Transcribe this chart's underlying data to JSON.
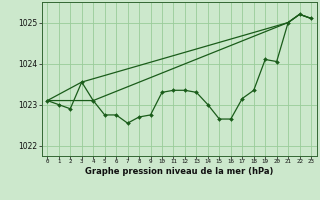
{
  "xlabel": "Graphe pression niveau de la mer (hPa)",
  "ylim": [
    1021.75,
    1025.5
  ],
  "xlim": [
    -0.5,
    23.5
  ],
  "yticks": [
    1022,
    1023,
    1024,
    1025
  ],
  "xticks": [
    0,
    1,
    2,
    3,
    4,
    5,
    6,
    7,
    8,
    9,
    10,
    11,
    12,
    13,
    14,
    15,
    16,
    17,
    18,
    19,
    20,
    21,
    22,
    23
  ],
  "bg_color": "#cce8cc",
  "grid_color": "#99cc99",
  "line_color": "#1a5c1a",
  "line1_x": [
    0,
    1,
    2,
    3,
    4,
    5,
    6,
    7,
    8,
    9,
    10,
    11,
    12,
    13,
    14,
    15,
    16,
    17,
    18,
    19,
    20,
    21,
    22,
    23
  ],
  "line1_y": [
    1023.1,
    1023.0,
    1022.9,
    1023.55,
    1023.1,
    1022.75,
    1022.75,
    1022.55,
    1022.7,
    1022.75,
    1023.3,
    1023.35,
    1023.35,
    1023.3,
    1023.0,
    1022.65,
    1022.65,
    1023.15,
    1023.35,
    1024.1,
    1024.05,
    1025.0,
    1025.2,
    1025.1
  ],
  "line2_x": [
    0,
    3,
    21,
    22,
    23
  ],
  "line2_y": [
    1023.1,
    1023.55,
    1025.0,
    1025.2,
    1025.1
  ],
  "line3_x": [
    0,
    4,
    21,
    22,
    23
  ],
  "line3_y": [
    1023.1,
    1023.1,
    1025.0,
    1025.2,
    1025.1
  ]
}
